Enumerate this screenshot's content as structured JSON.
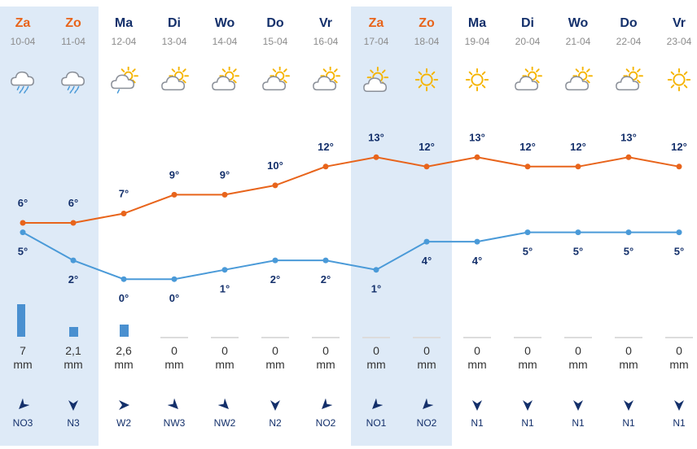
{
  "days": [
    {
      "name": "Za",
      "date": "10-04",
      "weekend": true,
      "icon": "rain-cloud-icon",
      "high": "6°",
      "low": "5°",
      "high_value": 6,
      "low_value": 5,
      "precip": "7",
      "precip_value": 7,
      "unit": "mm",
      "wind": "NO3",
      "wind_icon": "wind-arrow-northeast-icon"
    },
    {
      "name": "Zo",
      "date": "11-04",
      "weekend": true,
      "icon": "rain-cloud-icon",
      "high": "6°",
      "low": "2°",
      "high_value": 6,
      "low_value": 2,
      "precip": "2,1",
      "precip_value": 2.1,
      "unit": "mm",
      "wind": "N3",
      "wind_icon": "wind-arrow-north-icon"
    },
    {
      "name": "Ma",
      "date": "12-04",
      "weekend": false,
      "icon": "sun-cloud-rain-icon",
      "high": "7°",
      "low": "0°",
      "high_value": 7,
      "low_value": 0,
      "precip": "2,6",
      "precip_value": 2.6,
      "unit": "mm",
      "wind": "W2",
      "wind_icon": "wind-arrow-west-icon"
    },
    {
      "name": "Di",
      "date": "13-04",
      "weekend": false,
      "icon": "partly-cloudy-icon",
      "high": "9°",
      "low": "0°",
      "high_value": 9,
      "low_value": 0,
      "precip": "0",
      "precip_value": 0,
      "unit": "mm",
      "wind": "NW3",
      "wind_icon": "wind-arrow-northwest-icon"
    },
    {
      "name": "Wo",
      "date": "14-04",
      "weekend": false,
      "icon": "partly-cloudy-icon",
      "high": "9°",
      "low": "1°",
      "high_value": 9,
      "low_value": 1,
      "precip": "0",
      "precip_value": 0,
      "unit": "mm",
      "wind": "NW2",
      "wind_icon": "wind-arrow-northwest-icon"
    },
    {
      "name": "Do",
      "date": "15-04",
      "weekend": false,
      "icon": "partly-cloudy-icon",
      "high": "10°",
      "low": "2°",
      "high_value": 10,
      "low_value": 2,
      "precip": "0",
      "precip_value": 0,
      "unit": "mm",
      "wind": "N2",
      "wind_icon": "wind-arrow-north-icon"
    },
    {
      "name": "Vr",
      "date": "16-04",
      "weekend": false,
      "icon": "partly-cloudy-icon",
      "high": "12°",
      "low": "2°",
      "high_value": 12,
      "low_value": 2,
      "precip": "0",
      "precip_value": 0,
      "unit": "mm",
      "wind": "NO2",
      "wind_icon": "wind-arrow-northeast-icon"
    },
    {
      "name": "Za",
      "date": "17-04",
      "weekend": true,
      "icon": "mostly-sunny-icon",
      "high": "13°",
      "low": "1°",
      "high_value": 13,
      "low_value": 1,
      "precip": "0",
      "precip_value": 0,
      "unit": "mm",
      "wind": "NO1",
      "wind_icon": "wind-arrow-northeast-icon"
    },
    {
      "name": "Zo",
      "date": "18-04",
      "weekend": true,
      "icon": "sun-icon",
      "high": "12°",
      "low": "4°",
      "high_value": 12,
      "low_value": 4,
      "precip": "0",
      "precip_value": 0,
      "unit": "mm",
      "wind": "NO2",
      "wind_icon": "wind-arrow-northeast-icon"
    },
    {
      "name": "Ma",
      "date": "19-04",
      "weekend": false,
      "icon": "sun-icon",
      "high": "13°",
      "low": "4°",
      "high_value": 13,
      "low_value": 4,
      "precip": "0",
      "precip_value": 0,
      "unit": "mm",
      "wind": "N1",
      "wind_icon": "wind-arrow-north-icon"
    },
    {
      "name": "Di",
      "date": "20-04",
      "weekend": false,
      "icon": "partly-cloudy-icon",
      "high": "12°",
      "low": "5°",
      "high_value": 12,
      "low_value": 5,
      "precip": "0",
      "precip_value": 0,
      "unit": "mm",
      "wind": "N1",
      "wind_icon": "wind-arrow-north-icon"
    },
    {
      "name": "Wo",
      "date": "21-04",
      "weekend": false,
      "icon": "partly-cloudy-icon",
      "high": "12°",
      "low": "5°",
      "high_value": 12,
      "low_value": 5,
      "precip": "0",
      "precip_value": 0,
      "unit": "mm",
      "wind": "N1",
      "wind_icon": "wind-arrow-north-icon"
    },
    {
      "name": "Do",
      "date": "22-04",
      "weekend": false,
      "icon": "partly-cloudy-icon",
      "high": "13°",
      "low": "5°",
      "high_value": 13,
      "low_value": 5,
      "precip": "0",
      "precip_value": 0,
      "unit": "mm",
      "wind": "N1",
      "wind_icon": "wind-arrow-north-icon"
    },
    {
      "name": "Vr",
      "date": "23-04",
      "weekend": false,
      "icon": "sun-icon",
      "high": "12°",
      "low": "5°",
      "high_value": 12,
      "low_value": 5,
      "precip": "0",
      "precip_value": 0,
      "unit": "mm",
      "wind": "N1",
      "wind_icon": "wind-arrow-north-icon"
    }
  ],
  "colors": {
    "high_line": "#e8641b",
    "low_line": "#4a9ad8",
    "weekend_bg": "#deeaf7",
    "weekend_text": "#e8641b",
    "weekday_text": "#14306b",
    "precip_bar": "#4a90d0",
    "sun": "#f5b400",
    "cloud": "#8a8f98"
  }
}
